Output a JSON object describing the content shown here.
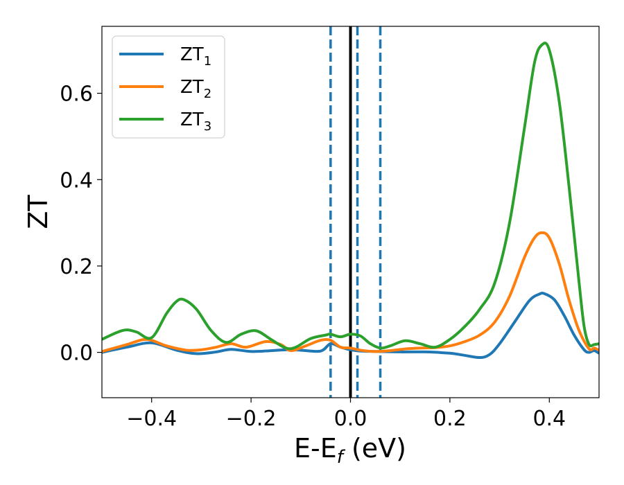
{
  "chart_data": {
    "type": "line",
    "title": "",
    "xlabel": "E-E",
    "xlabel_subscript": "f",
    "xlabel_unit": " (eV)",
    "ylabel": "ZT",
    "xlim": [
      -0.5,
      0.5
    ],
    "ylim": [
      -0.105,
      0.755
    ],
    "xticks": [
      -0.4,
      -0.2,
      0.0,
      0.2,
      0.4
    ],
    "xtick_labels": [
      "−0.4",
      "−0.2",
      "0.0",
      "0.2",
      "0.4"
    ],
    "yticks": [
      0.0,
      0.2,
      0.4,
      0.6
    ],
    "ytick_labels": [
      "0.0",
      "0.2",
      "0.4",
      "0.6"
    ],
    "grid": false,
    "legend_position": "top-left",
    "vertical_lines": [
      {
        "x": 0.0,
        "style": "solid",
        "color": "#000000"
      },
      {
        "x": -0.04,
        "style": "dashed",
        "color": "#1f77b4"
      },
      {
        "x": 0.014,
        "style": "dashed",
        "color": "#1f77b4"
      },
      {
        "x": 0.06,
        "style": "dashed",
        "color": "#1f77b4"
      }
    ],
    "series": [
      {
        "name": "ZT",
        "subscript": "1",
        "color": "#1f77b4",
        "x": [
          -0.5,
          -0.45,
          -0.4,
          -0.35,
          -0.31,
          -0.27,
          -0.24,
          -0.2,
          -0.16,
          -0.13,
          -0.1,
          -0.06,
          -0.04,
          -0.02,
          0.0,
          0.02,
          0.05,
          0.1,
          0.15,
          0.2,
          0.23,
          0.26,
          0.28,
          0.3,
          0.33,
          0.36,
          0.38,
          0.39,
          0.41,
          0.43,
          0.45,
          0.47,
          0.48,
          0.49,
          0.5
        ],
        "y": [
          0.0,
          0.012,
          0.022,
          0.005,
          -0.003,
          0.001,
          0.007,
          0.002,
          0.004,
          0.006,
          0.005,
          0.003,
          0.02,
          0.012,
          0.006,
          0.003,
          0.002,
          0.001,
          0.001,
          -0.002,
          -0.007,
          -0.012,
          -0.005,
          0.02,
          0.07,
          0.12,
          0.135,
          0.136,
          0.122,
          0.085,
          0.04,
          0.006,
          0.0,
          0.004,
          -0.002
        ]
      },
      {
        "name": "ZT",
        "subscript": "2",
        "color": "#ff7f0e",
        "x": [
          -0.5,
          -0.45,
          -0.41,
          -0.37,
          -0.33,
          -0.3,
          -0.27,
          -0.24,
          -0.21,
          -0.17,
          -0.14,
          -0.12,
          -0.09,
          -0.06,
          -0.04,
          -0.02,
          0.0,
          0.02,
          0.05,
          0.08,
          0.11,
          0.14,
          0.17,
          0.2,
          0.23,
          0.26,
          0.29,
          0.32,
          0.35,
          0.37,
          0.385,
          0.4,
          0.42,
          0.44,
          0.46,
          0.48,
          0.49,
          0.5
        ],
        "y": [
          0.002,
          0.018,
          0.03,
          0.015,
          0.005,
          0.006,
          0.012,
          0.02,
          0.012,
          0.025,
          0.018,
          0.004,
          0.015,
          0.028,
          0.028,
          0.012,
          0.01,
          0.005,
          0.002,
          0.004,
          0.008,
          0.01,
          0.011,
          0.015,
          0.025,
          0.04,
          0.07,
          0.13,
          0.22,
          0.265,
          0.277,
          0.265,
          0.205,
          0.12,
          0.05,
          0.008,
          0.01,
          0.005
        ]
      },
      {
        "name": "ZT",
        "subscript": "3",
        "color": "#2ca02c",
        "x": [
          -0.5,
          -0.47,
          -0.45,
          -0.43,
          -0.4,
          -0.37,
          -0.35,
          -0.335,
          -0.31,
          -0.28,
          -0.25,
          -0.22,
          -0.19,
          -0.16,
          -0.13,
          -0.11,
          -0.08,
          -0.05,
          -0.04,
          -0.02,
          0.0,
          0.02,
          0.04,
          0.06,
          0.08,
          0.11,
          0.14,
          0.17,
          0.2,
          0.23,
          0.26,
          0.29,
          0.32,
          0.35,
          0.37,
          0.385,
          0.4,
          0.42,
          0.44,
          0.46,
          0.47,
          0.48,
          0.49,
          0.5
        ],
        "y": [
          0.03,
          0.046,
          0.052,
          0.047,
          0.034,
          0.09,
          0.118,
          0.122,
          0.1,
          0.05,
          0.023,
          0.042,
          0.05,
          0.03,
          0.01,
          0.012,
          0.032,
          0.04,
          0.042,
          0.036,
          0.042,
          0.038,
          0.02,
          0.01,
          0.015,
          0.027,
          0.02,
          0.012,
          0.03,
          0.06,
          0.1,
          0.16,
          0.3,
          0.52,
          0.67,
          0.712,
          0.7,
          0.58,
          0.38,
          0.16,
          0.06,
          0.018,
          0.018,
          0.02
        ]
      }
    ]
  }
}
